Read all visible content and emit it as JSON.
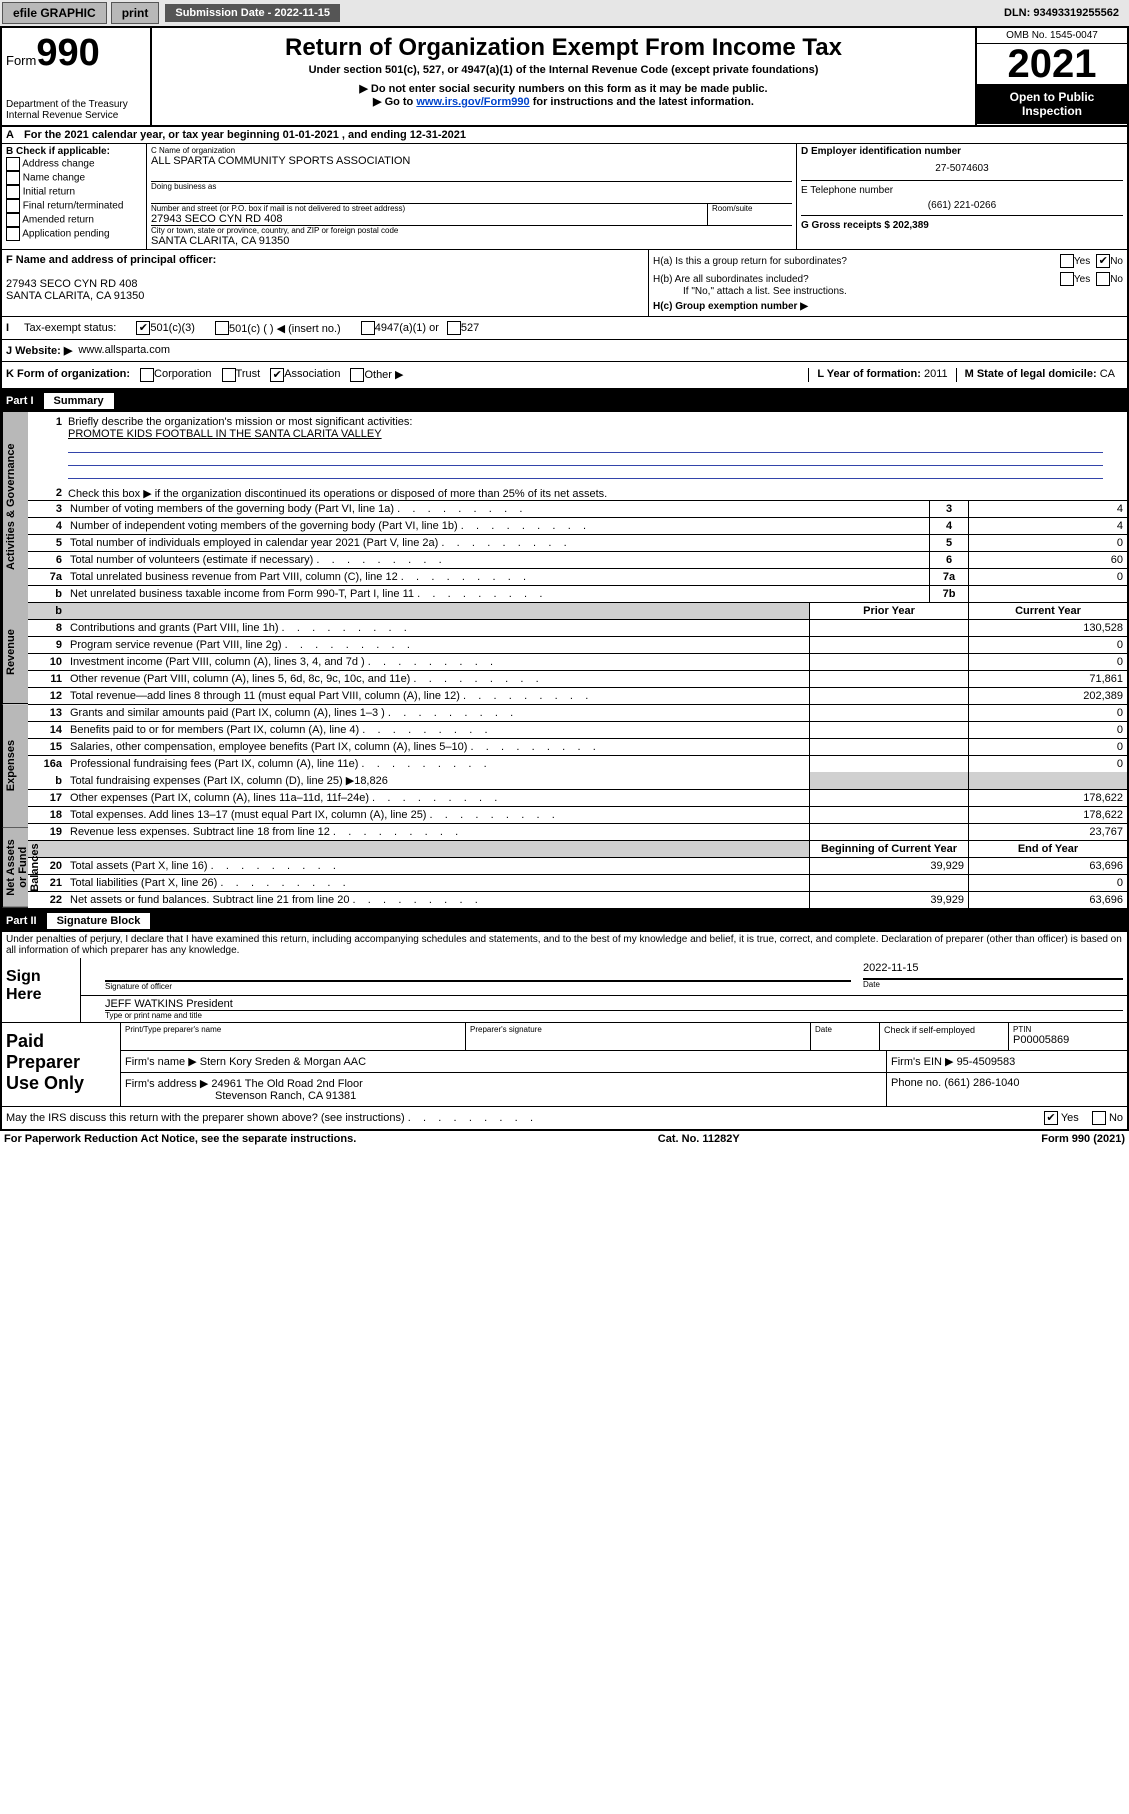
{
  "topbar": {
    "efile": "efile GRAPHIC",
    "print": "print",
    "submission_label": "Submission Date - 2022-11-15",
    "dln": "DLN: 93493319255562"
  },
  "header": {
    "form_prefix": "Form",
    "form_number": "990",
    "dept": "Department of the Treasury",
    "irs": "Internal Revenue Service",
    "title": "Return of Organization Exempt From Income Tax",
    "subtitle": "Under section 501(c), 527, or 4947(a)(1) of the Internal Revenue Code (except private foundations)",
    "note1": "▶ Do not enter social security numbers on this form as it may be made public.",
    "note2_prefix": "▶ Go to ",
    "note2_link": "www.irs.gov/Form990",
    "note2_suffix": " for instructions and the latest information.",
    "omb": "OMB No. 1545-0047",
    "year": "2021",
    "inspection": "Open to Public Inspection"
  },
  "line_a": "For the 2021 calendar year, or tax year beginning 01-01-2021   , and ending 12-31-2021",
  "box_b": {
    "label": "B Check if applicable:",
    "items": [
      "Address change",
      "Name change",
      "Initial return",
      "Final return/terminated",
      "Amended return",
      "Application pending"
    ]
  },
  "box_c": {
    "name_label": "C Name of organization",
    "name": "ALL SPARTA COMMUNITY SPORTS ASSOCIATION",
    "dba_label": "Doing business as",
    "street_label": "Number and street (or P.O. box if mail is not delivered to street address)",
    "room_label": "Room/suite",
    "street": "27943 SECO CYN RD 408",
    "city_label": "City or town, state or province, country, and ZIP or foreign postal code",
    "city": "SANTA CLARITA, CA  91350"
  },
  "box_d": {
    "label": "D Employer identification number",
    "ein": "27-5074603"
  },
  "box_e": {
    "label": "E Telephone number",
    "phone": "(661) 221-0266"
  },
  "box_g": {
    "label": "G Gross receipts $",
    "amount": "202,389"
  },
  "box_f": {
    "label": "F Name and address of principal officer:",
    "addr1": "27943 SECO CYN RD 408",
    "addr2": "SANTA CLARITA, CA  91350"
  },
  "box_h": {
    "ha": "H(a)  Is this a group return for subordinates?",
    "ha_yes": "Yes",
    "ha_no": "No",
    "hb": "H(b)  Are all subordinates included?",
    "hb_note": "If \"No,\" attach a list. See instructions.",
    "hc": "H(c)  Group exemption number ▶"
  },
  "line_i": {
    "label": "Tax-exempt status:",
    "opt1": "501(c)(3)",
    "opt2": "501(c) (  ) ◀ (insert no.)",
    "opt3": "4947(a)(1) or",
    "opt4": "527"
  },
  "line_j": {
    "label": "J   Website: ▶",
    "url": "www.allsparta.com"
  },
  "line_k": {
    "label": "K Form of organization:",
    "opts": [
      "Corporation",
      "Trust",
      "Association",
      "Other ▶"
    ]
  },
  "line_l": {
    "label": "L Year of formation:",
    "val": "2011"
  },
  "line_m": {
    "label": "M State of legal domicile:",
    "val": "CA"
  },
  "part1": {
    "title": "Part I",
    "subtitle": "Summary",
    "vtabs": [
      "Activities & Governance",
      "Revenue",
      "Expenses",
      "Net Assets or Fund Balances"
    ],
    "line1_label": "Briefly describe the organization's mission or most significant activities:",
    "line1_text": "PROMOTE KIDS FOOTBALL IN THE SANTA CLARITA VALLEY",
    "line2_label": "Check this box ▶       if the organization discontinued its operations or disposed of more than 25% of its net assets.",
    "rows_single": [
      {
        "n": "3",
        "t": "Number of voting members of the governing body (Part VI, line 1a)",
        "box": "3",
        "v": "4"
      },
      {
        "n": "4",
        "t": "Number of independent voting members of the governing body (Part VI, line 1b)",
        "box": "4",
        "v": "4"
      },
      {
        "n": "5",
        "t": "Total number of individuals employed in calendar year 2021 (Part V, line 2a)",
        "box": "5",
        "v": "0"
      },
      {
        "n": "6",
        "t": "Total number of volunteers (estimate if necessary)",
        "box": "6",
        "v": "60"
      },
      {
        "n": "7a",
        "t": "Total unrelated business revenue from Part VIII, column (C), line 12",
        "box": "7a",
        "v": "0"
      },
      {
        "n": "b",
        "t": "Net unrelated business taxable income from Form 990-T, Part I, line 11",
        "box": "7b",
        "v": ""
      }
    ],
    "header_prior": "Prior Year",
    "header_current": "Current Year",
    "rows_revenue": [
      {
        "n": "8",
        "t": "Contributions and grants (Part VIII, line 1h)",
        "p": "",
        "c": "130,528"
      },
      {
        "n": "9",
        "t": "Program service revenue (Part VIII, line 2g)",
        "p": "",
        "c": "0"
      },
      {
        "n": "10",
        "t": "Investment income (Part VIII, column (A), lines 3, 4, and 7d )",
        "p": "",
        "c": "0"
      },
      {
        "n": "11",
        "t": "Other revenue (Part VIII, column (A), lines 5, 6d, 8c, 9c, 10c, and 11e)",
        "p": "",
        "c": "71,861"
      },
      {
        "n": "12",
        "t": "Total revenue—add lines 8 through 11 (must equal Part VIII, column (A), line 12)",
        "p": "",
        "c": "202,389"
      }
    ],
    "rows_expenses": [
      {
        "n": "13",
        "t": "Grants and similar amounts paid (Part IX, column (A), lines 1–3 )",
        "p": "",
        "c": "0"
      },
      {
        "n": "14",
        "t": "Benefits paid to or for members (Part IX, column (A), line 4)",
        "p": "",
        "c": "0"
      },
      {
        "n": "15",
        "t": "Salaries, other compensation, employee benefits (Part IX, column (A), lines 5–10)",
        "p": "",
        "c": "0"
      },
      {
        "n": "16a",
        "t": "Professional fundraising fees (Part IX, column (A), line 11e)",
        "p": "",
        "c": "0"
      }
    ],
    "line16b": "Total fundraising expenses (Part IX, column (D), line 25) ▶18,826",
    "rows_expenses2": [
      {
        "n": "17",
        "t": "Other expenses (Part IX, column (A), lines 11a–11d, 11f–24e)",
        "p": "",
        "c": "178,622"
      },
      {
        "n": "18",
        "t": "Total expenses. Add lines 13–17 (must equal Part IX, column (A), line 25)",
        "p": "",
        "c": "178,622"
      },
      {
        "n": "19",
        "t": "Revenue less expenses. Subtract line 18 from line 12",
        "p": "",
        "c": "23,767"
      }
    ],
    "header_begin": "Beginning of Current Year",
    "header_end": "End of Year",
    "rows_netassets": [
      {
        "n": "20",
        "t": "Total assets (Part X, line 16)",
        "p": "39,929",
        "c": "63,696"
      },
      {
        "n": "21",
        "t": "Total liabilities (Part X, line 26)",
        "p": "",
        "c": "0"
      },
      {
        "n": "22",
        "t": "Net assets or fund balances. Subtract line 21 from line 20",
        "p": "39,929",
        "c": "63,696"
      }
    ]
  },
  "part2": {
    "title": "Part II",
    "subtitle": "Signature Block",
    "penalty": "Under penalties of perjury, I declare that I have examined this return, including accompanying schedules and statements, and to the best of my knowledge and belief, it is true, correct, and complete. Declaration of preparer (other than officer) is based on all information of which preparer has any knowledge.",
    "sign_here": "Sign Here",
    "sig_officer": "Signature of officer",
    "date_label": "Date",
    "date": "2022-11-15",
    "officer_name": "JEFF WATKINS President",
    "type_label": "Type or print name and title",
    "paid_label": "Paid Preparer Use Only",
    "prep_name_label": "Print/Type preparer's name",
    "prep_sig_label": "Preparer's signature",
    "check_self": "Check       if self-employed",
    "ptin_label": "PTIN",
    "ptin": "P00005869",
    "firm_name_label": "Firm's name    ▶",
    "firm_name": "Stern Kory Sreden & Morgan AAC",
    "firm_ein_label": "Firm's EIN ▶",
    "firm_ein": "95-4509583",
    "firm_addr_label": "Firm's address ▶",
    "firm_addr1": "24961 The Old Road 2nd Floor",
    "firm_addr2": "Stevenson Ranch, CA  91381",
    "phone_label": "Phone no.",
    "phone": "(661) 286-1040",
    "discuss": "May the IRS discuss this return with the preparer shown above? (see instructions)",
    "yes": "Yes",
    "no": "No"
  },
  "footer": {
    "left": "For Paperwork Reduction Act Notice, see the separate instructions.",
    "center": "Cat. No. 11282Y",
    "right": "Form 990 (2021)"
  },
  "colors": {
    "topbar_bg": "#e6e6e6",
    "btn_bg": "#b8b8b8",
    "dark_bg": "#555555",
    "link": "#0044cc",
    "shaded": "#d0d0d0"
  }
}
